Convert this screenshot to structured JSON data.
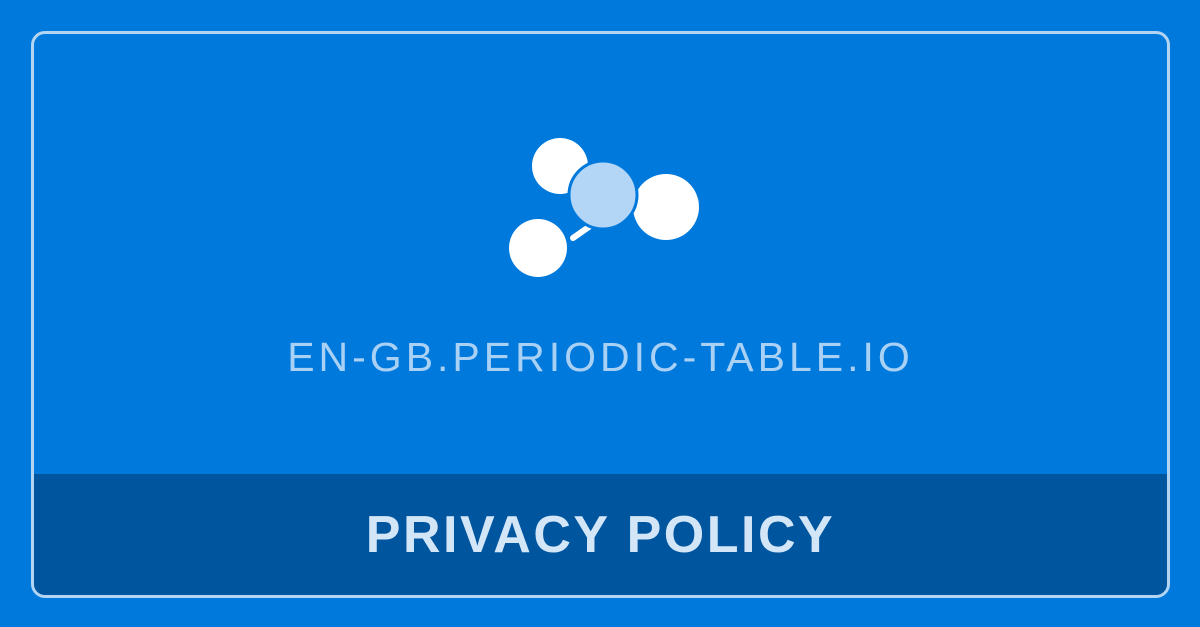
{
  "colors": {
    "background": "#0079dc",
    "border": "#b3d4f2",
    "footer_band": "#00559f",
    "domain_text": "#a9d1f5",
    "footer_text": "#d3e6f8",
    "atom_white": "#ffffff",
    "atom_center": "#b3d6f6"
  },
  "logo": {
    "icon": "molecule-icon"
  },
  "site": {
    "domain": "EN-GB.PERIODIC-TABLE.IO"
  },
  "footer": {
    "title": "PRIVACY POLICY"
  }
}
